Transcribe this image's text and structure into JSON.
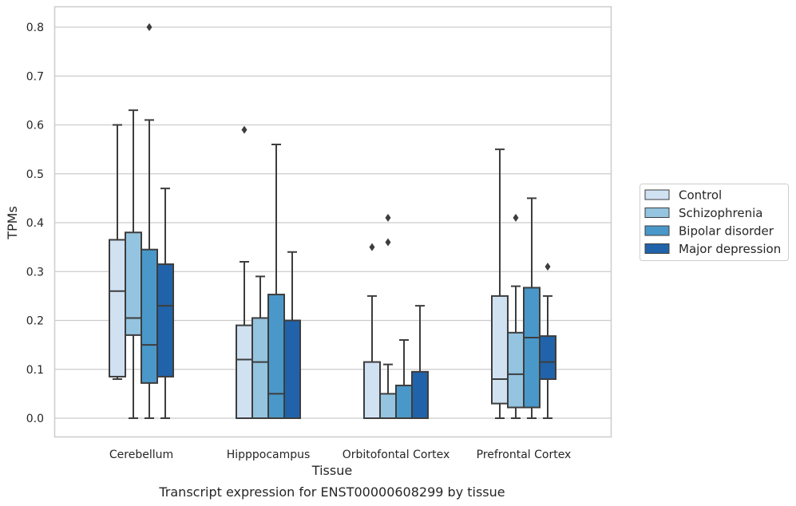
{
  "chart_data": {
    "type": "box",
    "title": "",
    "caption": "Transcript expression for ENST00000608299 by tissue",
    "xlabel": "Tissue",
    "ylabel": "TPMs",
    "ylim": [
      -0.04,
      0.84
    ],
    "yticks": [
      "0.0",
      "0.1",
      "0.2",
      "0.3",
      "0.4",
      "0.5",
      "0.6",
      "0.7",
      "0.8"
    ],
    "grid": "horizontal",
    "legend_position": "right",
    "categories": [
      "Cerebellum",
      "Hipppocampus",
      "Orbitofontal Cortex",
      "Prefrontal Cortex"
    ],
    "series": [
      {
        "name": "Control",
        "color": "#d0e1f2",
        "boxes": [
          {
            "whisker_low": 0.08,
            "q1": 0.085,
            "median": 0.26,
            "q3": 0.365,
            "whisker_high": 0.6,
            "outliers": []
          },
          {
            "whisker_low": 0.0,
            "q1": 0.0,
            "median": 0.12,
            "q3": 0.19,
            "whisker_high": 0.32,
            "outliers": [
              0.59
            ]
          },
          {
            "whisker_low": 0.0,
            "q1": 0.0,
            "median": 0.0,
            "q3": 0.115,
            "whisker_high": 0.25,
            "outliers": [
              0.35
            ]
          },
          {
            "whisker_low": 0.0,
            "q1": 0.03,
            "median": 0.08,
            "q3": 0.25,
            "whisker_high": 0.55,
            "outliers": []
          }
        ]
      },
      {
        "name": "Schizophrenia",
        "color": "#94c4df",
        "boxes": [
          {
            "whisker_low": 0.0,
            "q1": 0.17,
            "median": 0.205,
            "q3": 0.38,
            "whisker_high": 0.63,
            "outliers": []
          },
          {
            "whisker_low": 0.0,
            "q1": 0.0,
            "median": 0.115,
            "q3": 0.205,
            "whisker_high": 0.29,
            "outliers": []
          },
          {
            "whisker_low": 0.0,
            "q1": 0.0,
            "median": 0.0,
            "q3": 0.05,
            "whisker_high": 0.11,
            "outliers": [
              0.36,
              0.41
            ]
          },
          {
            "whisker_low": 0.0,
            "q1": 0.022,
            "median": 0.09,
            "q3": 0.175,
            "whisker_high": 0.27,
            "outliers": [
              0.41
            ]
          }
        ]
      },
      {
        "name": "Bipolar disorder",
        "color": "#4a98c9",
        "boxes": [
          {
            "whisker_low": 0.0,
            "q1": 0.072,
            "median": 0.15,
            "q3": 0.345,
            "whisker_high": 0.61,
            "outliers": [
              0.8
            ]
          },
          {
            "whisker_low": 0.0,
            "q1": 0.0,
            "median": 0.05,
            "q3": 0.253,
            "whisker_high": 0.56,
            "outliers": []
          },
          {
            "whisker_low": 0.0,
            "q1": 0.0,
            "median": 0.0,
            "q3": 0.067,
            "whisker_high": 0.16,
            "outliers": []
          },
          {
            "whisker_low": 0.0,
            "q1": 0.022,
            "median": 0.165,
            "q3": 0.267,
            "whisker_high": 0.45,
            "outliers": []
          }
        ]
      },
      {
        "name": "Major depression",
        "color": "#2163aa",
        "boxes": [
          {
            "whisker_low": 0.0,
            "q1": 0.085,
            "median": 0.23,
            "q3": 0.315,
            "whisker_high": 0.47,
            "outliers": []
          },
          {
            "whisker_low": 0.0,
            "q1": 0.0,
            "median": 0.0,
            "q3": 0.2,
            "whisker_high": 0.34,
            "outliers": []
          },
          {
            "whisker_low": 0.0,
            "q1": 0.0,
            "median": 0.0,
            "q3": 0.095,
            "whisker_high": 0.23,
            "outliers": []
          },
          {
            "whisker_low": 0.0,
            "q1": 0.08,
            "median": 0.115,
            "q3": 0.168,
            "whisker_high": 0.25,
            "outliers": [
              0.31
            ]
          }
        ]
      }
    ]
  }
}
